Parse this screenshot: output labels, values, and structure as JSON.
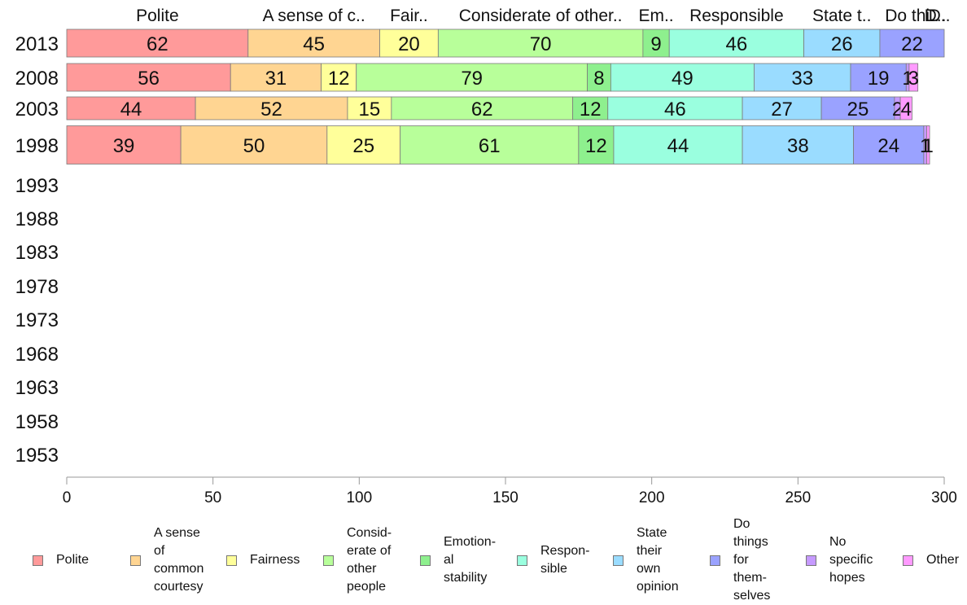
{
  "chart_data": {
    "type": "bar",
    "orientation": "horizontal",
    "stacked": true,
    "categories": [
      "2013",
      "2008",
      "2003",
      "1998",
      "1993",
      "1988",
      "1983",
      "1978",
      "1973",
      "1968",
      "1963",
      "1958",
      "1953"
    ],
    "series": [
      {
        "name": "Polite",
        "color": "#ff9a9a",
        "values": [
          62,
          56,
          44,
          39,
          null,
          null,
          null,
          null,
          null,
          null,
          null,
          null,
          null
        ]
      },
      {
        "name": "A sense of common courtesy",
        "color": "#ffd592",
        "values": [
          45,
          31,
          52,
          50,
          null,
          null,
          null,
          null,
          null,
          null,
          null,
          null,
          null
        ]
      },
      {
        "name": "Fairness",
        "color": "#ffff9a",
        "values": [
          20,
          12,
          15,
          25,
          null,
          null,
          null,
          null,
          null,
          null,
          null,
          null,
          null
        ]
      },
      {
        "name": "Considerate of other people",
        "color": "#b8ff9a",
        "values": [
          70,
          79,
          62,
          61,
          null,
          null,
          null,
          null,
          null,
          null,
          null,
          null,
          null
        ]
      },
      {
        "name": "Emotional stability",
        "color": "#8ef08e",
        "values": [
          9,
          8,
          12,
          12,
          null,
          null,
          null,
          null,
          null,
          null,
          null,
          null,
          null
        ]
      },
      {
        "name": "Responsible",
        "color": "#9affdf",
        "values": [
          46,
          49,
          46,
          44,
          null,
          null,
          null,
          null,
          null,
          null,
          null,
          null,
          null
        ]
      },
      {
        "name": "State their own opinion",
        "color": "#9adcff",
        "values": [
          26,
          33,
          27,
          38,
          null,
          null,
          null,
          null,
          null,
          null,
          null,
          null,
          null
        ]
      },
      {
        "name": "Do things for themselves",
        "color": "#9aa2ff",
        "values": [
          22,
          19,
          25,
          24,
          null,
          null,
          null,
          null,
          null,
          null,
          null,
          null,
          null
        ]
      },
      {
        "name": "No specific hopes",
        "color": "#c69aff",
        "values": [
          0,
          1,
          2,
          1,
          null,
          null,
          null,
          null,
          null,
          null,
          null,
          null,
          null
        ]
      },
      {
        "name": "Other",
        "color": "#ff9aff",
        "values": [
          0,
          3,
          4,
          1,
          null,
          null,
          null,
          null,
          null,
          null,
          null,
          null,
          null
        ]
      }
    ],
    "top_labels": [
      "Polite",
      "A sense of c..",
      "Fair..",
      "Considerate of other..",
      "Em..",
      "Responsible",
      "State t..",
      "Do thi..",
      "D..",
      "D.."
    ],
    "xlim": [
      0,
      300
    ],
    "xticks": [
      0,
      50,
      100,
      150,
      200,
      250,
      300
    ],
    "grid": false,
    "legend_position": "bottom",
    "legend_labels": [
      "Polite",
      "A sense\nof\ncommon\ncourtesy",
      "Fairness",
      "Consid-\nerate of\nother\npeople",
      "Emotion-\nal\nstability",
      "Respon-\nsible",
      "State\ntheir\nown\nopinion",
      "Do\nthings\nfor\nthem-\nselves",
      "No\nspecific\nhopes",
      "Other"
    ]
  }
}
